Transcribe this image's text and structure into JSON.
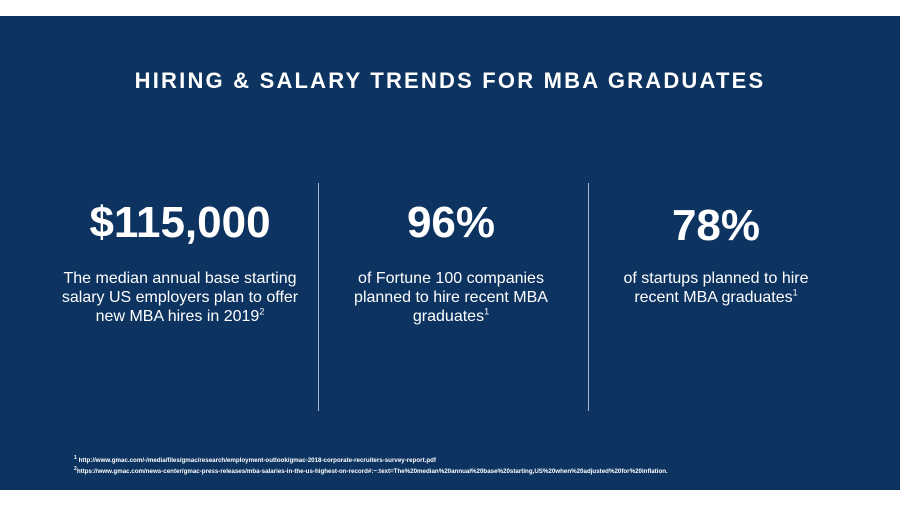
{
  "title": "HIRING & SALARY TRENDS FOR MBA GRADUATES",
  "stats": [
    {
      "value": "$115,000",
      "description": "The median annual base starting salary US employers plan to offer new MBA hires in 2019",
      "footnote_ref": "2"
    },
    {
      "value": "96%",
      "description": "of Fortune 100 companies planned to hire recent MBA graduates",
      "footnote_ref": "1"
    },
    {
      "value": "78%",
      "description": "of startups planned to hire recent MBA graduates",
      "footnote_ref": "1"
    }
  ],
  "footnotes": [
    {
      "marker": "1",
      "text": "http://www.gmac.com/-/media/files/gmac/research/employment-outlook/gmac-2018-corporate-recruiters-survey-report.pdf"
    },
    {
      "marker": "2",
      "text": "https://www.gmac.com/news-center/gmac-press-releases/mba-salaries-in-the-us-highest-on-record#:~:text=The%20median%20annual%20base%20starting,US%20when%20adjusted%20for%20inflation."
    }
  ],
  "colors": {
    "background": "#0d3360",
    "text": "#ffffff",
    "divider": "#a9b6c8"
  }
}
